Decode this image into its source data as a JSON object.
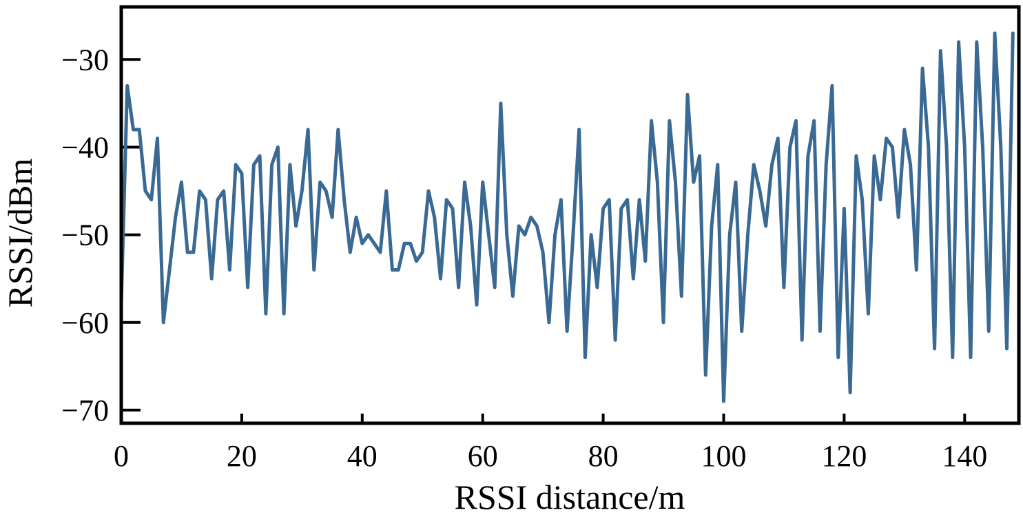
{
  "chart_data": {
    "type": "line",
    "xlabel": "RSSI distance/m",
    "ylabel": "RSSI/dBm",
    "xlim": [
      0,
      149
    ],
    "ylim": [
      -71.5,
      -24
    ],
    "x_ticks": [
      0,
      20,
      40,
      60,
      80,
      100,
      120,
      140
    ],
    "y_ticks": [
      -30,
      -40,
      -50,
      -60,
      -70
    ],
    "x_tick_labels": [
      "0",
      "20",
      "40",
      "60",
      "80",
      "100",
      "120",
      "140"
    ],
    "y_tick_labels": [
      "−30",
      "−40",
      "−50",
      "−60",
      "−70"
    ],
    "grid": false,
    "line_color": "#3a6a94",
    "series": [
      {
        "x": [
          0,
          1,
          2,
          3,
          4,
          5,
          6,
          7,
          8,
          9,
          10,
          11,
          12,
          13,
          14,
          15,
          16,
          17,
          18,
          19,
          20,
          21,
          22,
          23,
          24,
          25,
          26,
          27,
          28,
          29,
          30,
          31,
          32,
          33,
          34,
          35,
          36,
          37,
          38,
          39,
          40,
          41,
          42,
          43,
          44,
          45,
          46,
          47,
          48,
          49,
          50,
          51,
          52,
          53,
          54,
          55,
          56,
          57,
          58,
          59,
          60,
          61,
          62,
          63,
          64,
          65,
          66,
          67,
          68,
          69,
          70,
          71,
          72,
          73,
          74,
          75,
          76,
          77,
          78,
          79,
          80,
          81,
          82,
          83,
          84,
          85,
          86,
          87,
          88,
          89,
          90,
          91,
          92,
          93,
          94,
          95,
          96,
          97,
          98,
          99,
          100,
          101,
          102,
          103,
          104,
          105,
          106,
          107,
          108,
          109,
          110,
          111,
          112,
          113,
          114,
          115,
          116,
          117,
          118,
          119,
          120,
          121,
          122,
          123,
          124,
          125,
          126,
          127,
          128,
          129,
          130,
          131,
          132,
          133,
          134,
          135,
          136,
          137,
          138,
          139,
          140,
          141,
          142,
          143,
          144,
          145,
          146,
          147,
          148
        ],
        "y": [
          -58,
          -33,
          -38,
          -38,
          -45,
          -46,
          -39,
          -60,
          -54,
          -48,
          -44,
          -52,
          -52,
          -45,
          -46,
          -55,
          -46,
          -45,
          -54,
          -42,
          -43,
          -56,
          -42,
          -41,
          -59,
          -42,
          -40,
          -59,
          -42,
          -49,
          -45,
          -38,
          -54,
          -44,
          -45,
          -48,
          -38,
          -46,
          -52,
          -48,
          -51,
          -50,
          -51,
          -52,
          -45,
          -54,
          -54,
          -51,
          -51,
          -53,
          -52,
          -45,
          -48,
          -55,
          -46,
          -47,
          -56,
          -44,
          -49,
          -58,
          -44,
          -50,
          -56,
          -35,
          -50,
          -57,
          -49,
          -50,
          -48,
          -49,
          -52,
          -60,
          -50,
          -46,
          -61,
          -50,
          -38,
          -64,
          -50,
          -56,
          -47,
          -46,
          -62,
          -47,
          -46,
          -55,
          -46,
          -53,
          -37,
          -44,
          -60,
          -37,
          -44,
          -57,
          -34,
          -44,
          -41,
          -66,
          -49,
          -42,
          -69,
          -50,
          -44,
          -61,
          -50,
          -42,
          -45,
          -49,
          -42,
          -39,
          -56,
          -40,
          -37,
          -62,
          -41,
          -37,
          -61,
          -42,
          -33,
          -64,
          -47,
          -68,
          -41,
          -46,
          -59,
          -41,
          -46,
          -39,
          -40,
          -48,
          -38,
          -42,
          -54,
          -31,
          -40,
          -63,
          -29,
          -40,
          -64,
          -28,
          -40,
          -64,
          -28,
          -40,
          -61,
          -27,
          -40,
          -63,
          -27
        ]
      }
    ]
  }
}
